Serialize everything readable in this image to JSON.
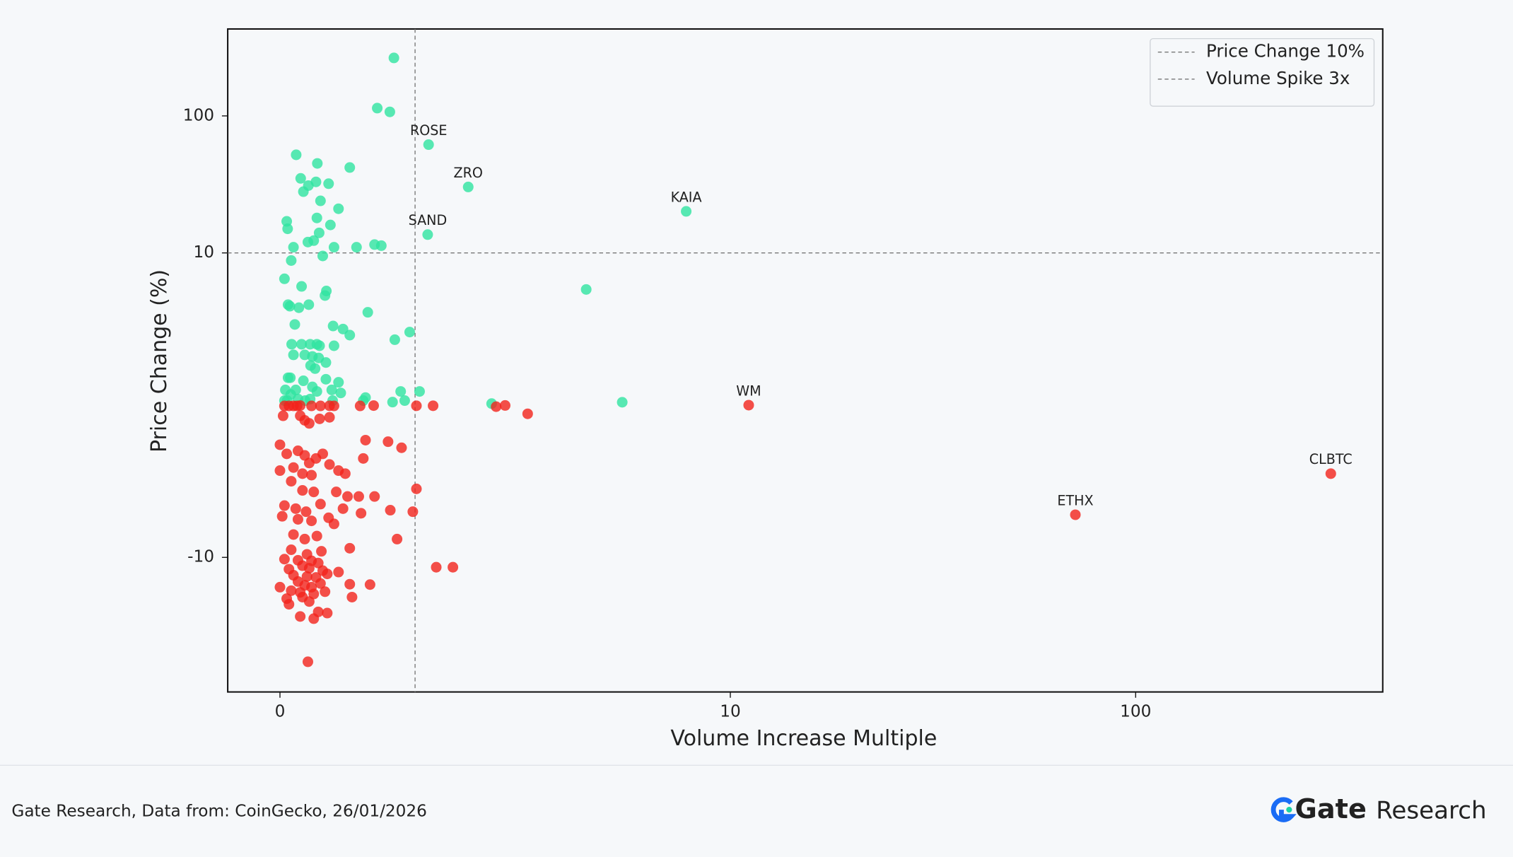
{
  "chart_data": {
    "type": "scatter",
    "x_label": "Volume Increase Multiple",
    "y_label": "Price Change (%)",
    "x_scale": "symlog",
    "y_scale": "symlog",
    "linthresh": 10,
    "xlim": [
      -1.16,
      407
    ],
    "ylim": [
      -96,
      431
    ],
    "xticks": [
      0,
      10,
      100
    ],
    "yticks": [
      -10,
      10,
      100
    ],
    "legend": "upper right",
    "reference_lines": [
      {
        "label": "Price Change 10%",
        "axis": "y",
        "value": 10,
        "color": "#777777"
      },
      {
        "label": "Volume Spike 3x",
        "axis": "x",
        "value": 3,
        "color": "#777777"
      }
    ],
    "series": [
      {
        "color": "#2fe3a0",
        "x": [
          3.3,
          4.18,
          9.02,
          3.28
        ],
        "values": [
          61.7,
          30.3,
          20.1,
          13.6
        ],
        "labels": [
          "ROSE",
          "ZRO",
          "KAIA",
          "SAND"
        ]
      },
      {
        "color": "#2fe3a0",
        "x": [
          2.53,
          2.16,
          2.44,
          0.36,
          0.83,
          1.55,
          0.46,
          0.8,
          1.08,
          0.63,
          0.52,
          0.9,
          1.3,
          0.82,
          1.12,
          0.15,
          0.17,
          0.87,
          0.62,
          0.75,
          1.2,
          0.3,
          1.7,
          2.1,
          2.25,
          0.25,
          0.95,
          6.8,
          0.1,
          0.48,
          1.03,
          1.0,
          0.18,
          0.22,
          0.42,
          0.64,
          1.95,
          0.33,
          1.18,
          1.4,
          1.55,
          2.88,
          2.55,
          0.26,
          0.48,
          0.67,
          0.82,
          0.88,
          1.2,
          0.3,
          0.55,
          0.72,
          0.86,
          1.02,
          0.68,
          0.78,
          0.18,
          0.23,
          0.52,
          1.02,
          1.3,
          0.12,
          0.35,
          0.72,
          1.15,
          0.24,
          0.82,
          1.35,
          2.68,
          3.1,
          0.1,
          0.16,
          0.4,
          0.56,
          0.67,
          1.17,
          1.9,
          1.85,
          2.5,
          2.77,
          4.7,
          7.6
        ],
        "values": [
          265,
          114,
          107,
          52,
          45,
          42,
          35,
          33,
          32,
          31,
          28,
          24,
          21,
          18,
          16,
          17,
          15,
          14,
          12,
          12.3,
          11,
          11,
          11,
          11.5,
          11.3,
          9.5,
          9.8,
          7.6,
          8.3,
          7.8,
          7.5,
          7.2,
          6.6,
          6.5,
          6.4,
          6.6,
          6.1,
          5.3,
          5.2,
          5.0,
          4.6,
          4.8,
          4.3,
          4.0,
          4.0,
          4.0,
          4.0,
          3.9,
          3.9,
          3.3,
          3.3,
          3.2,
          3.1,
          2.8,
          2.6,
          2.4,
          1.8,
          1.8,
          1.6,
          1.7,
          1.5,
          1.0,
          1.0,
          1.2,
          1.0,
          0.7,
          0.9,
          0.8,
          0.9,
          0.9,
          0.3,
          0.3,
          0.4,
          0.3,
          0.4,
          0.3,
          0.5,
          0.3,
          0.2,
          0.3,
          0.1,
          0.19
        ]
      },
      {
        "color": "#f3231b",
        "x": [
          11.1,
          303,
          71
        ],
        "values": [
          0,
          -4.5,
          -7.2
        ],
        "labels": [
          "WM",
          "CLBTC",
          "ETHX"
        ]
      },
      {
        "color": "#f3231b",
        "x": [
          5.5,
          4.8,
          5.0,
          3.47,
          3.84,
          0.62,
          0.1,
          0.2,
          0.3,
          0.38,
          0.45,
          0.7,
          0.9,
          1.1,
          1.2,
          1.78,
          2.08,
          3.03,
          3.4,
          0.07,
          0.55,
          0.65,
          0.88,
          1.1,
          0.45,
          1.9,
          2.4,
          2.7,
          1.85,
          0.0,
          0.15,
          0.4,
          0.55,
          0.65,
          0.8,
          0.95,
          1.1,
          0.3,
          0.5,
          0.7,
          1.3,
          1.45,
          0.0,
          0.25,
          0.5,
          0.75,
          1.25,
          1.5,
          1.75,
          2.1,
          3.03,
          0.1,
          0.35,
          0.58,
          0.9,
          1.4,
          1.8,
          2.45,
          2.95,
          0.05,
          0.4,
          0.7,
          1.2,
          1.08,
          0.3,
          0.55,
          0.82,
          2.6,
          0.25,
          0.6,
          0.92,
          1.55,
          0.1,
          0.4,
          0.7,
          0.85,
          0.5,
          0.65,
          0.95,
          1.3,
          0.2,
          0.3,
          0.6,
          0.8,
          1.05,
          0.4,
          0.55,
          0.7,
          0.9,
          1.55,
          2.0,
          0.0,
          0.25,
          0.45,
          0.75,
          1.0,
          0.15,
          0.5,
          0.65,
          1.6,
          0.2,
          0.85,
          1.05,
          0.45,
          0.75
        ],
        "values": [
          -0.57,
          -0.1,
          -0.02,
          -11.8,
          -11.8,
          -57.8,
          -0.05,
          -0.05,
          -0.05,
          -0.05,
          -0.03,
          -0.05,
          -0.05,
          -0.04,
          -0.05,
          -0.05,
          -0.03,
          -0.04,
          -0.04,
          -0.7,
          -1.0,
          -1.2,
          -0.9,
          -0.8,
          -0.7,
          -2.3,
          -2.4,
          -2.8,
          -3.5,
          -2.6,
          -3.2,
          -3.0,
          -3.3,
          -3.8,
          -3.5,
          -3.2,
          -3.9,
          -4.1,
          -4.5,
          -4.6,
          -4.3,
          -4.5,
          -4.3,
          -5.0,
          -5.6,
          -5.7,
          -5.7,
          -6.0,
          -6.0,
          -6.0,
          -5.5,
          -6.6,
          -6.8,
          -7.0,
          -6.5,
          -6.8,
          -7.1,
          -6.9,
          -7.0,
          -7.3,
          -7.5,
          -7.6,
          -7.8,
          -7.4,
          -8.5,
          -8.8,
          -8.6,
          -8.8,
          -9.5,
          -9.8,
          -9.6,
          -9.4,
          -10.3,
          -10.5,
          -10.6,
          -11,
          -11.5,
          -12,
          -12.5,
          -12.8,
          -12.2,
          -13.5,
          -13.8,
          -14,
          -13.2,
          -15,
          -16,
          -16.5,
          -15.5,
          -15.7,
          -15.8,
          -16.5,
          -17.5,
          -18,
          -18.5,
          -17.8,
          -20,
          -19.5,
          -21,
          -19.5,
          -22,
          -25,
          -25.5,
          -27,
          -28
        ]
      }
    ]
  },
  "footer": {
    "source": "Gate Research, Data from: CoinGecko, 26/01/2026",
    "logo_brand": "Gate",
    "logo_suffix": "Research"
  }
}
